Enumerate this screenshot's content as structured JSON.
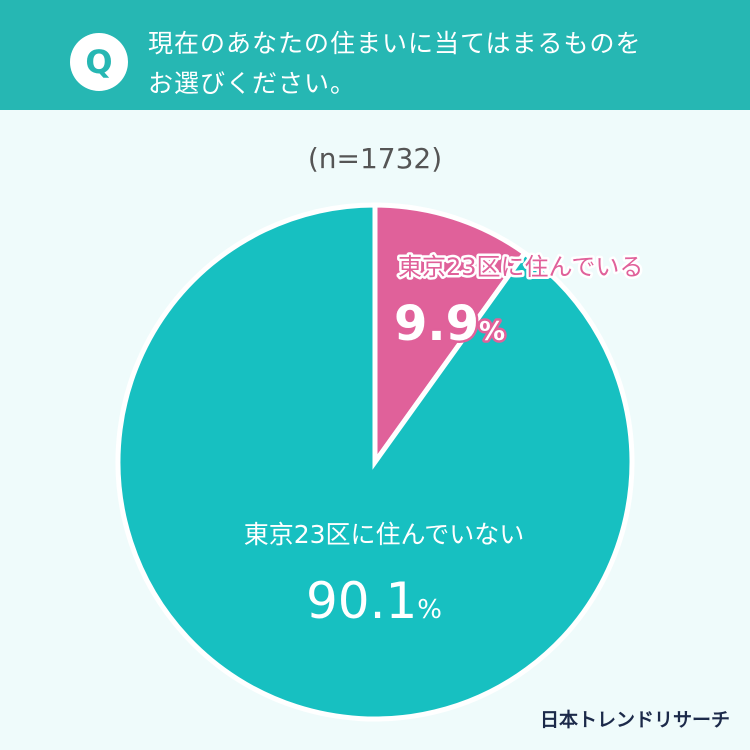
{
  "header": {
    "badge": "Q",
    "question_line1": "現在のあなたの住まいに当てはまるものを",
    "question_line2": "お選びください。"
  },
  "sample_size": "(n=1732)",
  "brand": "日本トレンドリサーチ",
  "colors": {
    "header_bg": "#26b7b3",
    "page_bg": "#effbfb",
    "slice_teal": "#17c0c1",
    "slice_pink": "#e0619a"
  },
  "chart_data": {
    "type": "pie",
    "title": "",
    "series": [
      {
        "name": "東京23区に住んでいる",
        "value": 9.9,
        "label": "9.9",
        "unit": "%",
        "color": "#e0619a"
      },
      {
        "name": "東京23区に住んでいない",
        "value": 90.1,
        "label": "90.1",
        "unit": "%",
        "color": "#17c0c1"
      }
    ],
    "start_angle": "12 o'clock",
    "direction": "clockwise"
  }
}
